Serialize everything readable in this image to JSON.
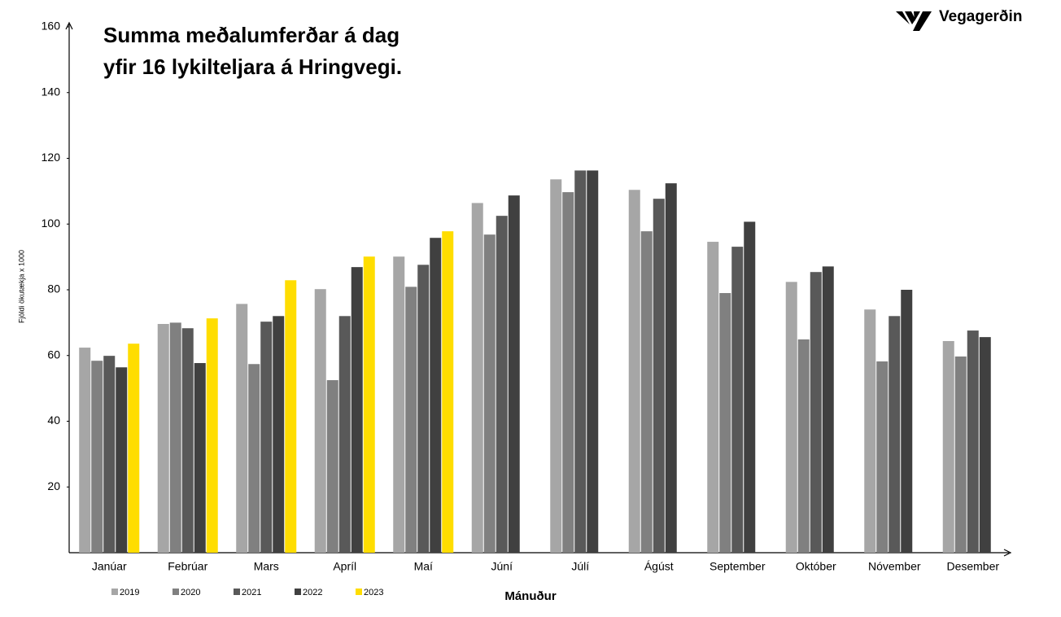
{
  "brand": "Vegagerðin",
  "chart_data": {
    "type": "bar",
    "title": [
      "Summa meðalumferðar á dag",
      "yfir 16 lykilteljara á Hringvegi."
    ],
    "y_label": "Fjöldi ökutækja x 1000",
    "x_label": "Mánuður",
    "categories": [
      "Janúar",
      "Febrúar",
      "Mars",
      "Apríl",
      "Maí",
      "Júní",
      "Júlí",
      "Ágúst",
      "September",
      "Október",
      "Nóvember",
      "Desember"
    ],
    "series": [
      {
        "name": "2019",
        "color": "#a6a6a6",
        "values": [
          62.4,
          69.6,
          75.7,
          80.2,
          90.1,
          106.4,
          113.6,
          110.4,
          94.6,
          82.4,
          74.0,
          64.4
        ]
      },
      {
        "name": "2020",
        "color": "#808080",
        "values": [
          58.4,
          70.0,
          57.4,
          52.5,
          80.9,
          96.8,
          109.7,
          97.8,
          79.0,
          64.9,
          58.2,
          59.7
        ]
      },
      {
        "name": "2021",
        "color": "#595959",
        "values": [
          59.9,
          68.3,
          70.3,
          72.0,
          87.6,
          102.5,
          116.3,
          107.7,
          93.1,
          85.4,
          72.0,
          67.6
        ]
      },
      {
        "name": "2022",
        "color": "#404040",
        "values": [
          56.4,
          57.7,
          72.0,
          86.9,
          95.8,
          108.7,
          116.3,
          112.4,
          100.7,
          87.1,
          80.0,
          65.6
        ]
      },
      {
        "name": "2023",
        "color": "#ffdd00",
        "values": [
          63.6,
          71.3,
          82.9,
          90.1,
          97.8,
          null,
          null,
          null,
          null,
          null,
          null,
          null
        ]
      }
    ],
    "ylim": [
      0,
      160
    ],
    "yticks": [
      20,
      40,
      60,
      80,
      100,
      120,
      140,
      160
    ],
    "grid": false
  }
}
